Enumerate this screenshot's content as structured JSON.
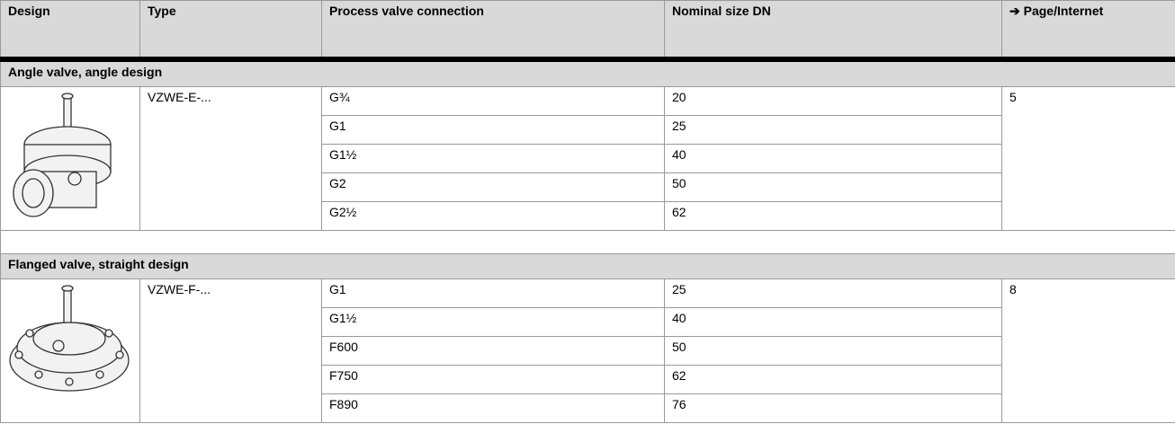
{
  "header": {
    "columns": [
      "Design",
      "Type",
      "Process valve connection",
      "Nominal size DN",
      "➔ Page/Internet"
    ]
  },
  "sections": [
    {
      "title": "Angle valve, angle design",
      "type": "VZWE-E-...",
      "page": "5",
      "rows": [
        [
          "G¾",
          "20"
        ],
        [
          "G1",
          "25"
        ],
        [
          "G1½",
          "40"
        ],
        [
          "G2",
          "50"
        ],
        [
          "G2½",
          "62"
        ]
      ]
    },
    {
      "title": "Flanged valve, straight design",
      "type": "VZWE-F-...",
      "page": "8",
      "rows": [
        [
          "G1",
          "25"
        ],
        [
          "G1½",
          "40"
        ],
        [
          "F600",
          "50"
        ],
        [
          "F750",
          "62"
        ],
        [
          "F890",
          "76"
        ]
      ]
    }
  ]
}
